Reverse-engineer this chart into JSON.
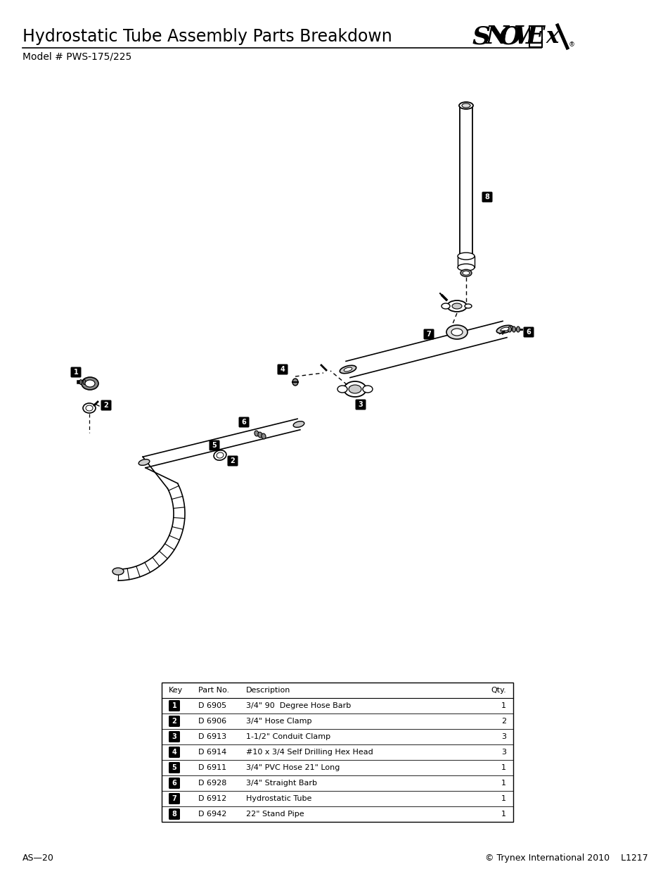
{
  "title": "Hydrostatic Tube Assembly Parts Breakdown",
  "model": "Model # PWS-175/225",
  "page_footer_left": "AS—20",
  "page_footer_right": "© Trynex International 2010    L1217",
  "background_color": "#ffffff",
  "table": {
    "headers": [
      "Key",
      "Part No.",
      "Description",
      "Qty."
    ],
    "rows": [
      [
        "1",
        "D 6905",
        "3/4\" 90  Degree Hose Barb",
        "1"
      ],
      [
        "2",
        "D 6906",
        "3/4\" Hose Clamp",
        "2"
      ],
      [
        "3",
        "D 6913",
        "1-1/2\" Conduit Clamp",
        "3"
      ],
      [
        "4",
        "D 6914",
        "#10 x 3/4 Self Drilling Hex Head",
        "3"
      ],
      [
        "5",
        "D 6911",
        "3/4\" PVC Hose 21\" Long",
        "1"
      ],
      [
        "6",
        "D 6928",
        "3/4\" Straight Barb",
        "1"
      ],
      [
        "7",
        "D 6912",
        "Hydrostatic Tube",
        "1"
      ],
      [
        "8",
        "D 6942",
        "22\" Stand Pipe",
        "1"
      ]
    ]
  }
}
